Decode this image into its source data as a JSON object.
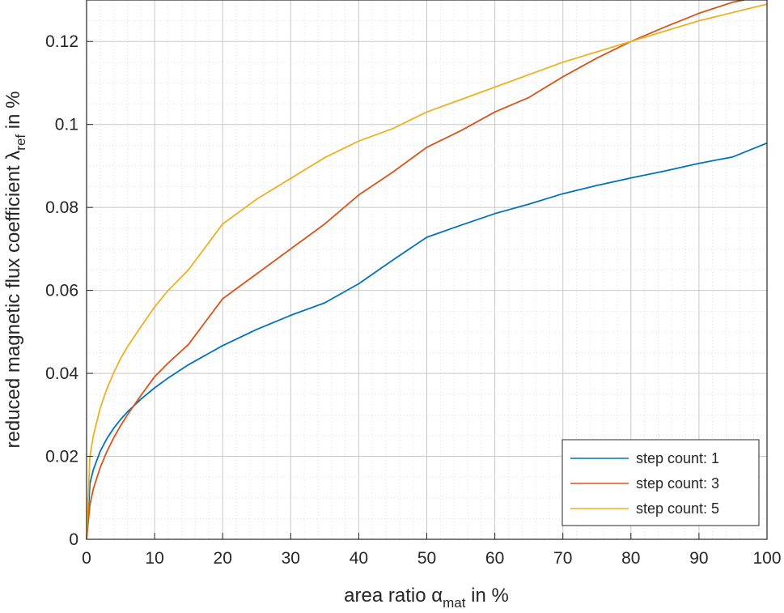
{
  "chart_data": {
    "type": "line",
    "xlabel": "area ratio α",
    "xlabel_sub": "mat",
    "xlabel_suffix": " in %",
    "ylabel": "reduced magnetic flux coefficient λ",
    "ylabel_sub": "ref",
    "ylabel_suffix": " in %",
    "xlim": [
      0,
      100
    ],
    "ylim": [
      0,
      0.13
    ],
    "xticks": [
      0,
      10,
      20,
      30,
      40,
      50,
      60,
      70,
      80,
      90,
      100
    ],
    "xtick_labels": [
      "0",
      "10",
      "20",
      "30",
      "40",
      "50",
      "60",
      "70",
      "80",
      "90",
      "100"
    ],
    "yticks": [
      0,
      0.02,
      0.04,
      0.06,
      0.08,
      0.1,
      0.12
    ],
    "ytick_labels": [
      "0",
      "0.02",
      "0.04",
      "0.06",
      "0.08",
      "0.1",
      "0.12"
    ],
    "grid": "major and minor",
    "legend_position": "bottom-right",
    "x": [
      0,
      0.5,
      1,
      2,
      3,
      4,
      5,
      6,
      8,
      10,
      12,
      15,
      20,
      25,
      30,
      35,
      40,
      45,
      50,
      55,
      60,
      65,
      70,
      75,
      80,
      85,
      90,
      95,
      100
    ],
    "series": [
      {
        "name": "step count: 1",
        "color": "#0072bd",
        "values": [
          0,
          0.0135,
          0.0168,
          0.0212,
          0.0243,
          0.0268,
          0.0289,
          0.0307,
          0.0338,
          0.0365,
          0.0389,
          0.0421,
          0.0467,
          0.0506,
          0.054,
          0.057,
          0.0616,
          0.0673,
          0.0728,
          0.0757,
          0.0785,
          0.0808,
          0.0833,
          0.0853,
          0.0871,
          0.0888,
          0.0906,
          0.0922,
          0.0955
        ]
      },
      {
        "name": "step count: 3",
        "color": "#d95319",
        "values": [
          0,
          0.0085,
          0.0122,
          0.0173,
          0.0212,
          0.0245,
          0.0274,
          0.03,
          0.0347,
          0.0392,
          0.0425,
          0.047,
          0.058,
          0.064,
          0.07,
          0.076,
          0.083,
          0.0885,
          0.0945,
          0.0985,
          0.103,
          0.1065,
          0.1115,
          0.116,
          0.12,
          0.1235,
          0.1268,
          0.1295,
          0.131
        ]
      },
      {
        "name": "step count: 5",
        "color": "#edb120",
        "values": [
          0,
          0.0201,
          0.025,
          0.0316,
          0.0363,
          0.0402,
          0.0436,
          0.0464,
          0.0513,
          0.056,
          0.06,
          0.065,
          0.076,
          0.082,
          0.087,
          0.092,
          0.096,
          0.099,
          0.103,
          0.106,
          0.109,
          0.112,
          0.115,
          0.1175,
          0.12,
          0.1225,
          0.125,
          0.127,
          0.129
        ]
      }
    ]
  }
}
